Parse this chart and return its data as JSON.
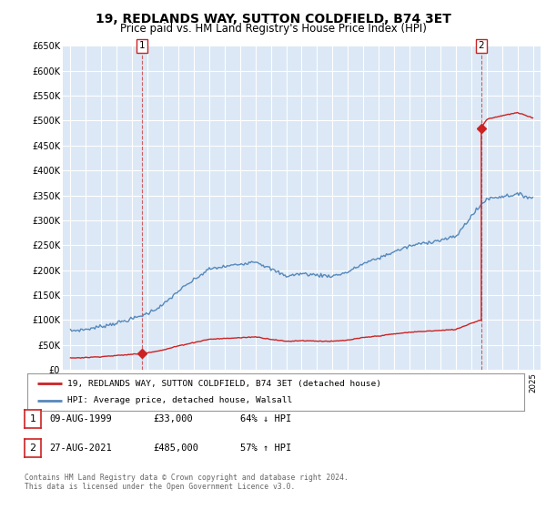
{
  "title": "19, REDLANDS WAY, SUTTON COLDFIELD, B74 3ET",
  "subtitle": "Price paid vs. HM Land Registry's House Price Index (HPI)",
  "title_fontsize": 10,
  "subtitle_fontsize": 8.5,
  "ylim": [
    0,
    650000
  ],
  "yticks": [
    0,
    50000,
    100000,
    150000,
    200000,
    250000,
    300000,
    350000,
    400000,
    450000,
    500000,
    550000,
    600000,
    650000
  ],
  "ytick_labels": [
    "£0",
    "£50K",
    "£100K",
    "£150K",
    "£200K",
    "£250K",
    "£300K",
    "£350K",
    "£400K",
    "£450K",
    "£500K",
    "£550K",
    "£600K",
    "£650K"
  ],
  "xlim_start": 1994.5,
  "xlim_end": 2025.5,
  "sale1_year": 1999.622,
  "sale1_price": 33000,
  "sale2_year": 2021.655,
  "sale2_price": 485000,
  "hpi_color": "#5588bb",
  "price_color": "#cc2222",
  "plot_bg_color": "#dce8f5",
  "background_color": "#ffffff",
  "grid_color": "#ffffff",
  "legend_label_price": "19, REDLANDS WAY, SUTTON COLDFIELD, B74 3ET (detached house)",
  "legend_label_hpi": "HPI: Average price, detached house, Walsall",
  "table_rows": [
    {
      "num": "1",
      "date": "09-AUG-1999",
      "price": "£33,000",
      "hpi": "64% ↓ HPI"
    },
    {
      "num": "2",
      "date": "27-AUG-2021",
      "price": "£485,000",
      "hpi": "57% ↑ HPI"
    }
  ],
  "footer": "Contains HM Land Registry data © Crown copyright and database right 2024.\nThis data is licensed under the Open Government Licence v3.0."
}
